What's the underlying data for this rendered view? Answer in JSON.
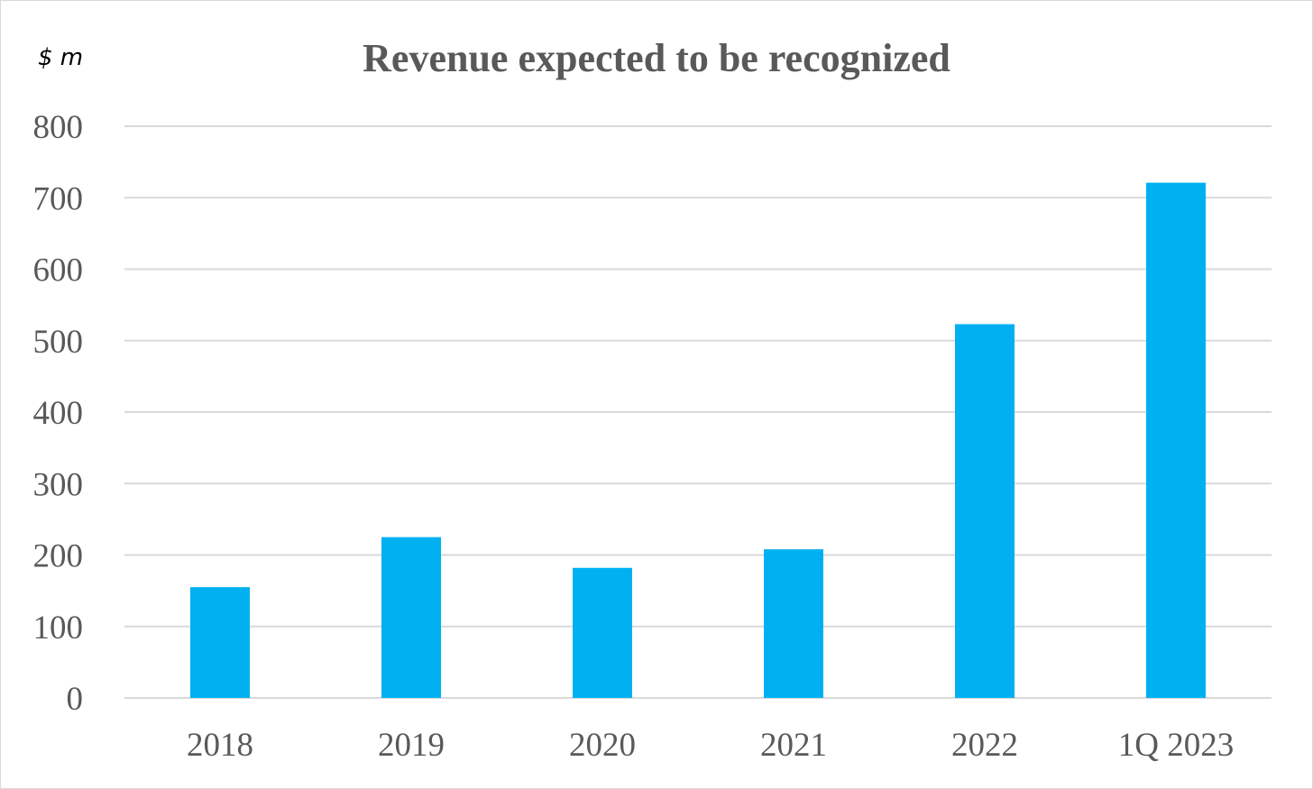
{
  "chart_data": {
    "type": "bar",
    "title": "Revenue expected to be recognized",
    "unit_label": "$ m",
    "categories": [
      "2018",
      "2019",
      "2020",
      "2021",
      "2022",
      "1Q 2023"
    ],
    "values": [
      155,
      225,
      182,
      208,
      523,
      721
    ],
    "ylim": [
      0,
      800
    ],
    "yticks": [
      0,
      100,
      200,
      300,
      400,
      500,
      600,
      700,
      800
    ],
    "grid": true,
    "legend": "none",
    "bar_color": "#00b0f0"
  }
}
